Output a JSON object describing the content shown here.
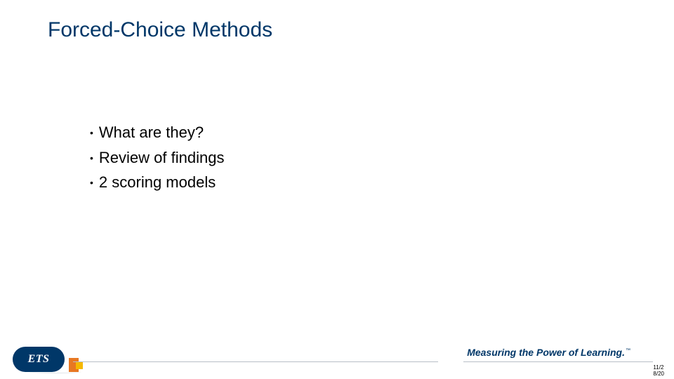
{
  "title": "Forced-Choice Methods",
  "bullets": [
    "What are they?",
    "Review of findings",
    "2 scoring models"
  ],
  "footer": {
    "logo_text": "ETS",
    "tagline": "Measuring the Power of Learning.",
    "tm": "™",
    "page_line1": "11/2",
    "page_line2": "8/20"
  },
  "colors": {
    "brand_navy": "#003768",
    "brand_orange": "#e87722",
    "brand_yellow": "#f5b800",
    "text_black": "#000000",
    "rule_gray": "#b8bec7",
    "bg": "#ffffff"
  },
  "typography": {
    "title_fontsize": 30,
    "title_weight": 400,
    "bullet_fontsize": 22,
    "tagline_fontsize": 14,
    "meta_fontsize": 8
  }
}
